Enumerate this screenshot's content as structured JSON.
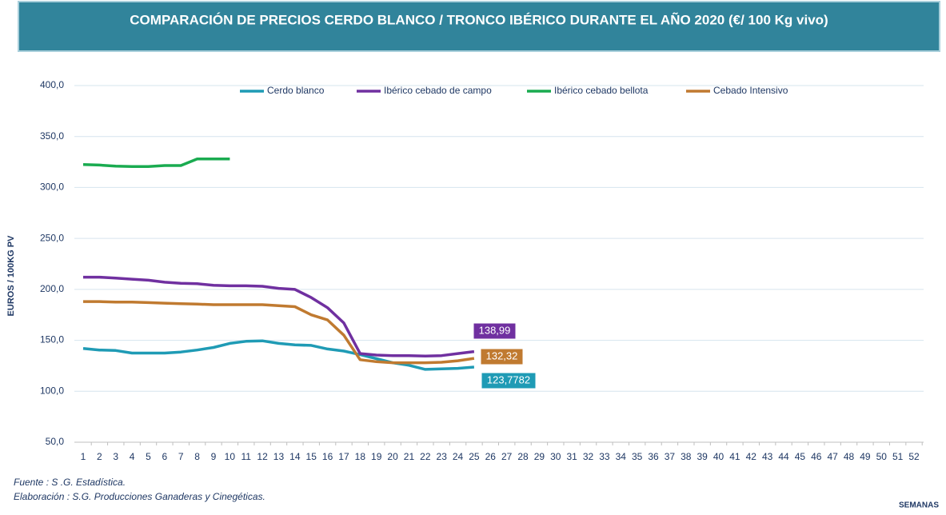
{
  "chart_data": {
    "type": "line",
    "title": "COMPARACIÓN DE PRECIOS CERDO BLANCO / TRONCO IBÉRICO DURANTE EL AÑO 2020 (€/ 100 Kg vivo)",
    "y_label": "EUROS / 100KG PV",
    "x_label": "SEMANAS",
    "notes": [
      "Fuente :  S .G. Estadística.",
      "Elaboración : S.G. Producciones Ganaderas y Cinegéticas."
    ],
    "categories": [
      "1",
      "2",
      "3",
      "4",
      "5",
      "6",
      "7",
      "8",
      "9",
      "10",
      "11",
      "12",
      "13",
      "14",
      "15",
      "16",
      "17",
      "18",
      "19",
      "20",
      "21",
      "22",
      "23",
      "24",
      "25",
      "26",
      "27",
      "28",
      "29",
      "30",
      "31",
      "32",
      "33",
      "34",
      "35",
      "36",
      "37",
      "38",
      "39",
      "40",
      "41",
      "42",
      "43",
      "44",
      "45",
      "46",
      "47",
      "48",
      "49",
      "50",
      "51",
      "52"
    ],
    "ylim": [
      50,
      400
    ],
    "yticks": [
      {
        "value": 50,
        "label": "50,0"
      },
      {
        "value": 100,
        "label": "100,0"
      },
      {
        "value": 150,
        "label": "150,0"
      },
      {
        "value": 200,
        "label": "200,0"
      },
      {
        "value": 250,
        "label": "250,0"
      },
      {
        "value": 300,
        "label": "300,0"
      },
      {
        "value": 350,
        "label": "350,0"
      },
      {
        "value": 400,
        "label": "400,0"
      }
    ],
    "grid": true,
    "legend": "top",
    "series": [
      {
        "name": "Cerdo blanco",
        "color": "#1f9bb5",
        "values": [
          142,
          140.5,
          140,
          137.5,
          137.5,
          137.5,
          138.5,
          140.5,
          143,
          147,
          149,
          149.5,
          147,
          145.5,
          145,
          141.5,
          139.5,
          136,
          132,
          128,
          125.5,
          121.5,
          122,
          122.5,
          123.7782,
          null,
          null,
          null,
          null,
          null,
          null,
          null,
          null,
          null,
          null,
          null,
          null,
          null,
          null,
          null,
          null,
          null,
          null,
          null,
          null,
          null,
          null,
          null,
          null,
          null,
          null,
          null
        ],
        "value_labels": [
          null,
          null,
          null,
          null,
          null,
          null,
          null,
          null,
          null,
          null,
          null,
          null,
          null,
          null,
          null,
          null,
          null,
          null,
          null,
          null,
          null,
          null,
          null,
          null,
          "123,7782",
          null,
          null,
          null,
          null,
          null,
          null,
          null,
          null,
          null,
          null,
          null,
          null,
          null,
          null,
          null,
          null,
          null,
          null,
          null,
          null,
          null,
          null,
          null,
          null,
          null,
          null,
          null
        ]
      },
      {
        "name": "Ibérico cebado de campo",
        "color": "#7030a0",
        "values": [
          212,
          212,
          211,
          210,
          209,
          207,
          206,
          205.5,
          204,
          203.5,
          203.5,
          203,
          201,
          200,
          192,
          182,
          167,
          137,
          135.5,
          135,
          135,
          134.5,
          135,
          137,
          138.99,
          null,
          null,
          null,
          null,
          null,
          null,
          null,
          null,
          null,
          null,
          null,
          null,
          null,
          null,
          null,
          null,
          null,
          null,
          null,
          null,
          null,
          null,
          null,
          null,
          null,
          null,
          null
        ],
        "value_labels": [
          null,
          null,
          null,
          null,
          null,
          null,
          null,
          null,
          null,
          null,
          null,
          null,
          null,
          null,
          null,
          null,
          null,
          null,
          null,
          null,
          null,
          null,
          null,
          null,
          "138,99",
          null,
          null,
          null,
          null,
          null,
          null,
          null,
          null,
          null,
          null,
          null,
          null,
          null,
          null,
          null,
          null,
          null,
          null,
          null,
          null,
          null,
          null,
          null,
          null,
          null,
          null,
          null
        ]
      },
      {
        "name": "Ibérico cebado bellota",
        "color": "#1aab50",
        "values": [
          322.5,
          322,
          321,
          320.5,
          320.5,
          321.5,
          321.5,
          328,
          328,
          328,
          null,
          null,
          null,
          null,
          null,
          null,
          null,
          null,
          null,
          null,
          null,
          null,
          null,
          null,
          null,
          null,
          null,
          null,
          null,
          null,
          null,
          null,
          null,
          null,
          null,
          null,
          null,
          null,
          null,
          null,
          null,
          null,
          null,
          null,
          null,
          null,
          null,
          null,
          null,
          null,
          null,
          null
        ]
      },
      {
        "name": "Cebado Intensivo",
        "color": "#c07a30",
        "values": [
          188,
          188,
          187.5,
          187.5,
          187,
          186.5,
          186,
          185.5,
          185,
          185,
          185,
          185,
          184,
          183,
          175,
          170,
          155,
          131,
          129,
          128,
          128,
          128,
          128.5,
          130,
          132.32,
          null,
          null,
          null,
          null,
          null,
          null,
          null,
          null,
          null,
          null,
          null,
          null,
          null,
          null,
          null,
          null,
          null,
          null,
          null,
          null,
          null,
          null,
          null,
          null,
          null,
          null,
          null
        ],
        "value_labels": [
          null,
          null,
          null,
          null,
          null,
          null,
          null,
          null,
          null,
          null,
          null,
          null,
          null,
          null,
          null,
          null,
          null,
          null,
          null,
          null,
          null,
          null,
          null,
          null,
          "132,32",
          null,
          null,
          null,
          null,
          null,
          null,
          null,
          null,
          null,
          null,
          null,
          null,
          null,
          null,
          null,
          null,
          null,
          null,
          null,
          null,
          null,
          null,
          null,
          null,
          null,
          null,
          null
        ]
      }
    ]
  }
}
